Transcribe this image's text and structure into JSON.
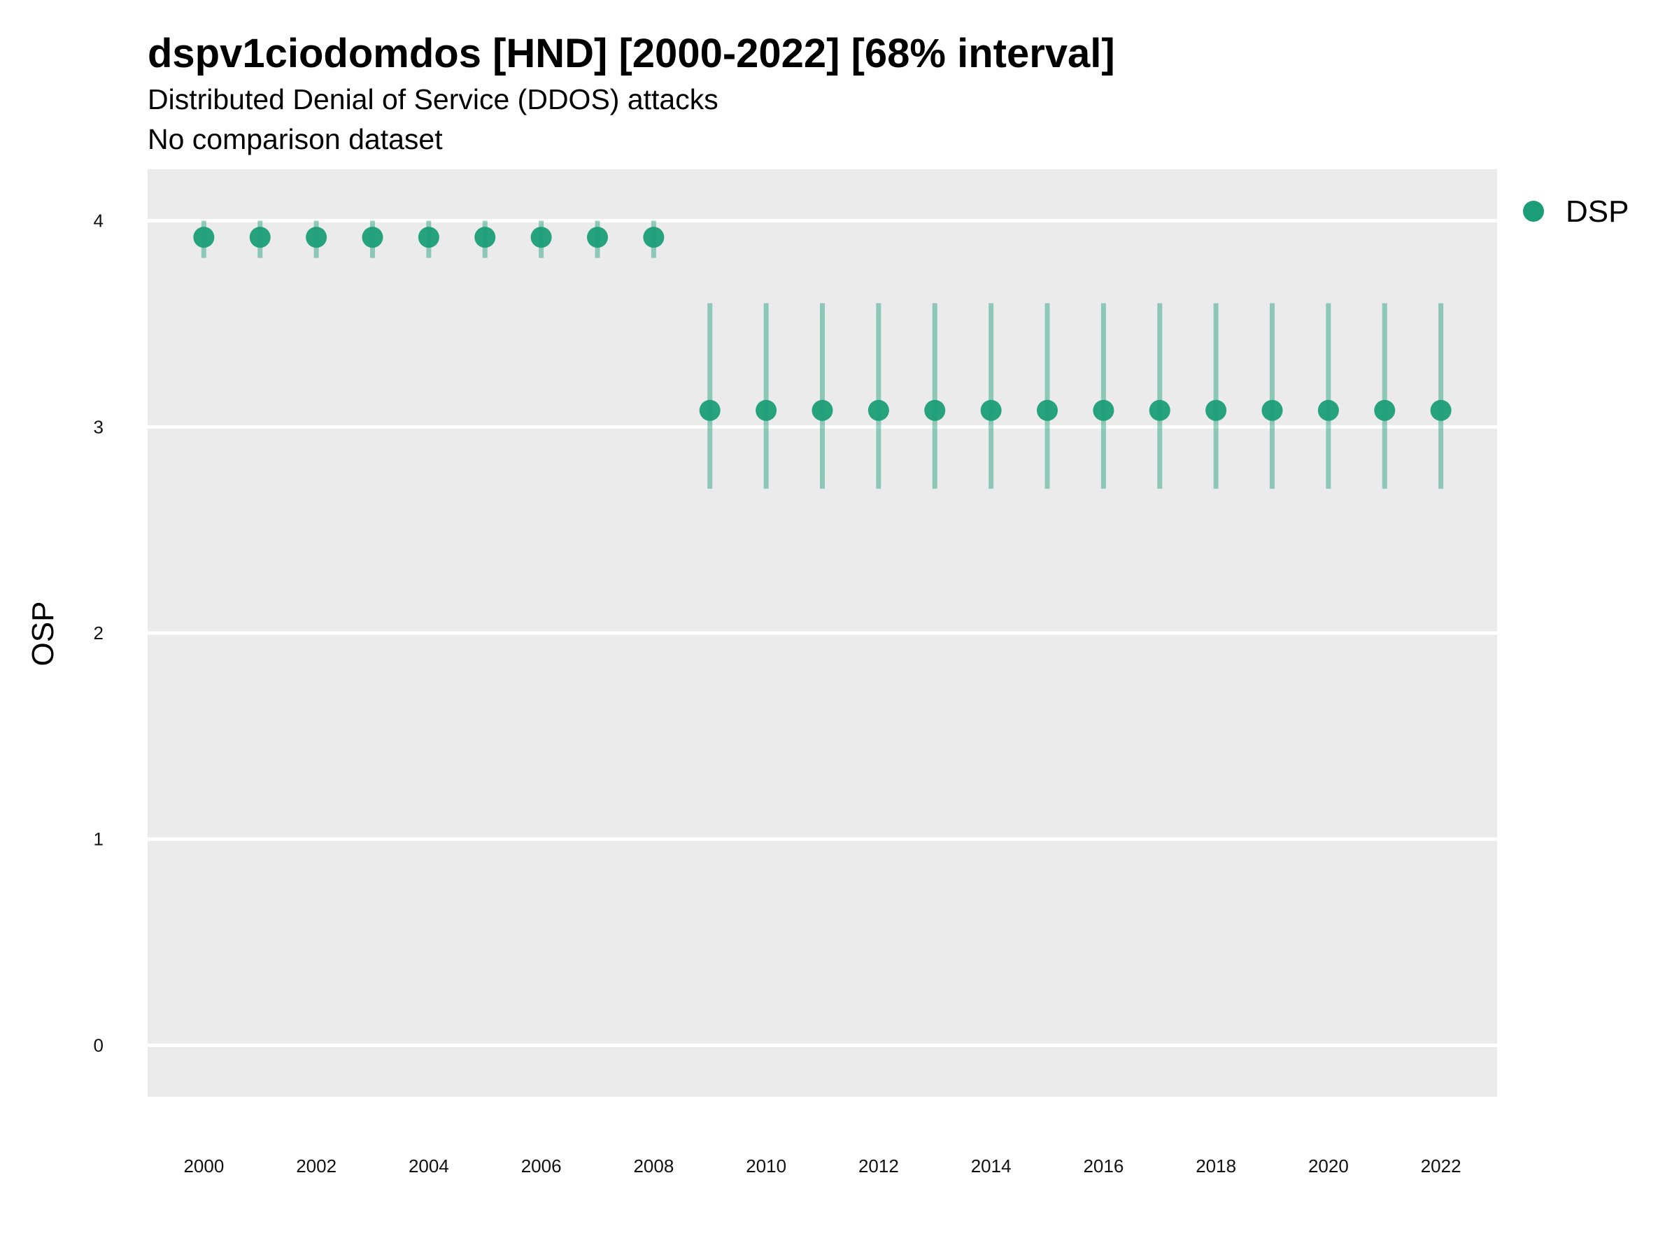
{
  "chart_data": {
    "type": "scatter",
    "title": "dspv1ciodomdos [HND] [2000-2022] [68% interval]",
    "subtitle": "Distributed Denial of Service (DDOS) attacks",
    "caption_line": "No comparison dataset",
    "xlabel": "",
    "ylabel": "OSP",
    "xlim": [
      1999,
      2023
    ],
    "ylim": [
      -0.25,
      4.25
    ],
    "x_ticks": [
      2000,
      2002,
      2004,
      2006,
      2008,
      2010,
      2012,
      2014,
      2016,
      2018,
      2020,
      2022
    ],
    "y_ticks": [
      0,
      1,
      2,
      3,
      4
    ],
    "grid": true,
    "legend_position": "right",
    "series": [
      {
        "name": "DSP",
        "color": "#1b9e77",
        "x": [
          2000,
          2001,
          2002,
          2003,
          2004,
          2005,
          2006,
          2007,
          2008,
          2009,
          2010,
          2011,
          2012,
          2013,
          2014,
          2015,
          2016,
          2017,
          2018,
          2019,
          2020,
          2021,
          2022
        ],
        "y": [
          3.92,
          3.92,
          3.92,
          3.92,
          3.92,
          3.92,
          3.92,
          3.92,
          3.92,
          3.08,
          3.08,
          3.08,
          3.08,
          3.08,
          3.08,
          3.08,
          3.08,
          3.08,
          3.08,
          3.08,
          3.08,
          3.08,
          3.08
        ],
        "lower": [
          3.82,
          3.82,
          3.82,
          3.82,
          3.82,
          3.82,
          3.82,
          3.82,
          3.82,
          2.7,
          2.7,
          2.7,
          2.7,
          2.7,
          2.7,
          2.7,
          2.7,
          2.7,
          2.7,
          2.7,
          2.7,
          2.7,
          2.7
        ],
        "upper": [
          4.0,
          4.0,
          4.0,
          4.0,
          4.0,
          4.0,
          4.0,
          4.0,
          4.0,
          3.6,
          3.6,
          3.6,
          3.6,
          3.6,
          3.6,
          3.6,
          3.6,
          3.6,
          3.6,
          3.6,
          3.6,
          3.6,
          3.6
        ]
      }
    ]
  }
}
